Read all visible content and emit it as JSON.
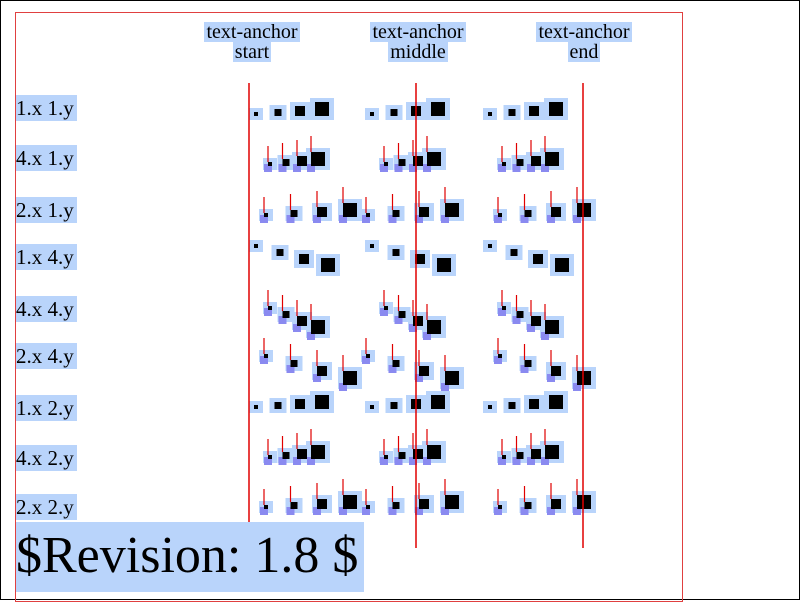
{
  "header": {
    "columns": [
      {
        "line1": "text-anchor",
        "line2": "start"
      },
      {
        "line1": "text-anchor",
        "line2": "middle"
      },
      {
        "line1": "text-anchor",
        "line2": "end"
      }
    ]
  },
  "rows": [
    {
      "label": "1.x 1.y"
    },
    {
      "label": "4.x 1.y"
    },
    {
      "label": "2.x 1.y"
    },
    {
      "label": "1.x 4.y"
    },
    {
      "label": "4.x 4.y"
    },
    {
      "label": "2.x 4.y"
    },
    {
      "label": "1.x 2.y"
    },
    {
      "label": "4.x 2.y"
    },
    {
      "label": "2.x 2.y"
    }
  ],
  "footer": {
    "revision": "$Revision: 1.8 $"
  },
  "colors": {
    "highlight": "#b9d4fb",
    "anchor_line": "#e00000",
    "glyph_marker": "#8a8af0",
    "glyph": "#000000",
    "frame": "#e04040"
  }
}
